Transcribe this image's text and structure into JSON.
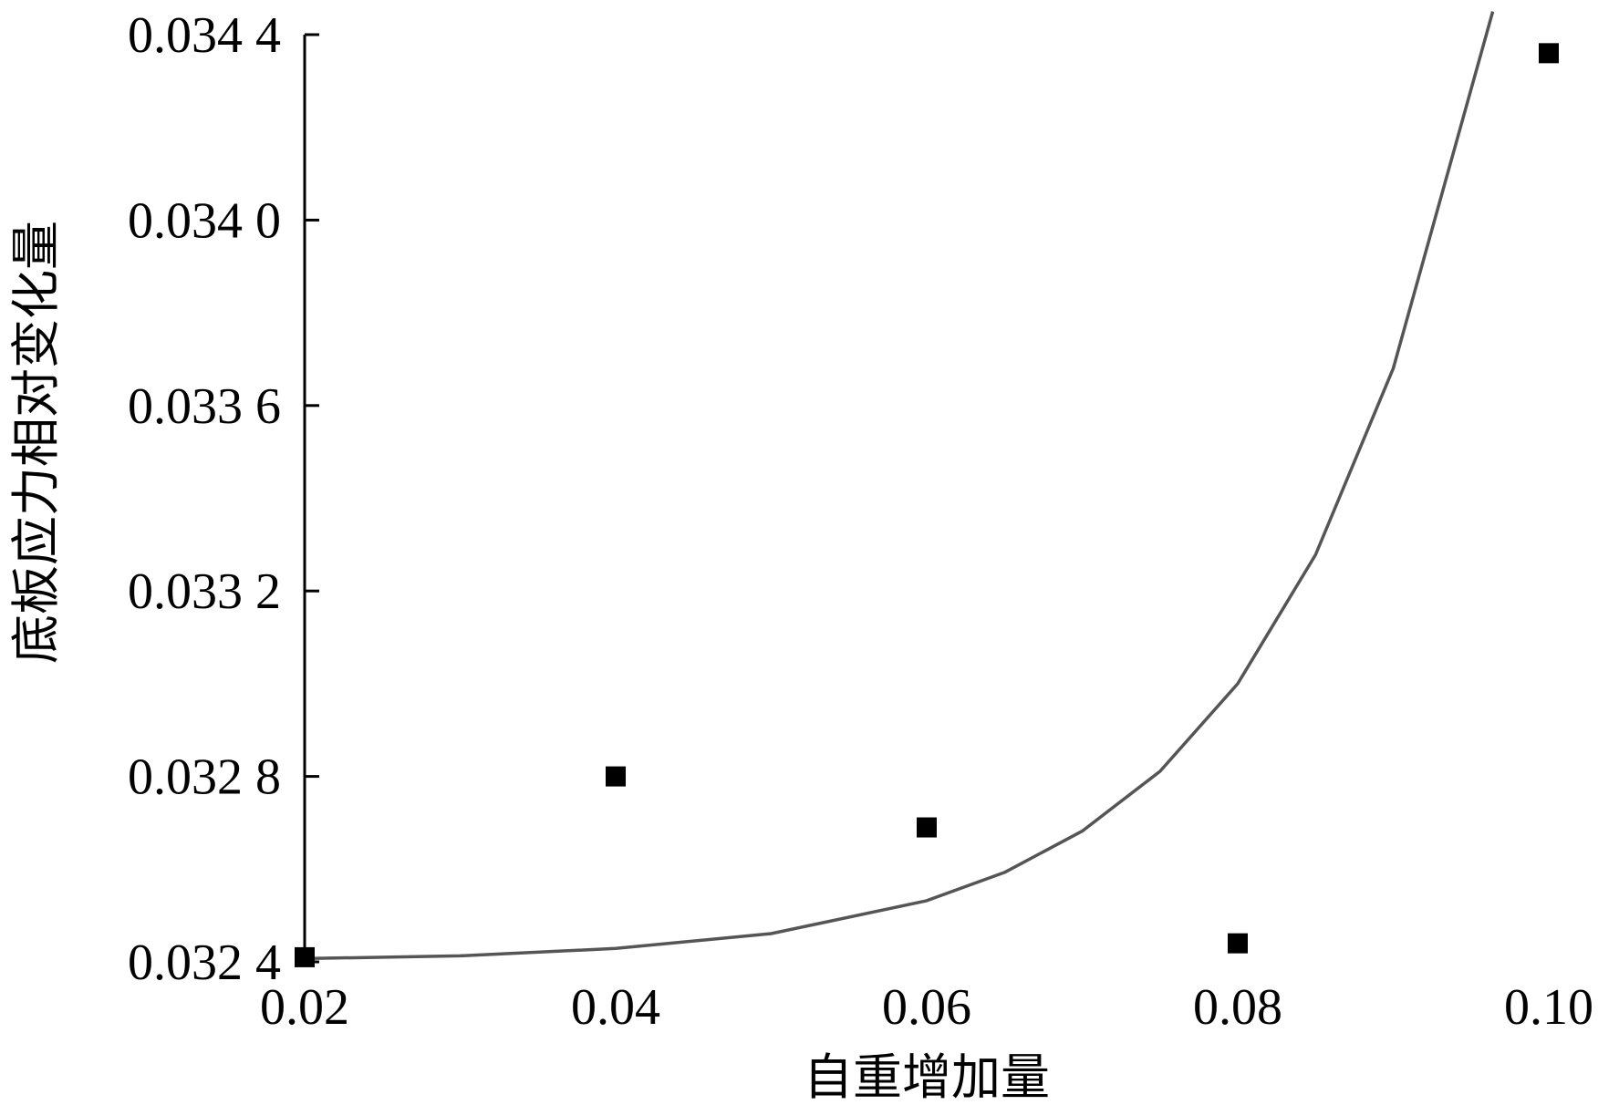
{
  "chart_data": {
    "type": "scatter",
    "title": "",
    "xlabel": "自重增加量",
    "ylabel": "底板应力相对变化量",
    "xlim": [
      0.02,
      0.1
    ],
    "ylim": [
      0.0324,
      0.0344
    ],
    "x_ticks": [
      0.02,
      0.04,
      0.06,
      0.08,
      0.1
    ],
    "x_tick_labels": [
      "0.02",
      "0.04",
      "0.06",
      "0.08",
      "0.10"
    ],
    "y_ticks": [
      0.0324,
      0.0328,
      0.0332,
      0.0336,
      0.034,
      0.0344
    ],
    "y_tick_labels": [
      "0.032 4",
      "0.032 8",
      "0.033 2",
      "0.033 6",
      "0.034 0",
      "0.034 4"
    ],
    "grid": false,
    "series": [
      {
        "type": "scatter",
        "marker": "square",
        "color": "#000000",
        "x": [
          0.02,
          0.04,
          0.06,
          0.08,
          0.1
        ],
        "y": [
          0.03241,
          0.0328,
          0.03269,
          0.03244,
          0.03436
        ]
      },
      {
        "type": "line",
        "fit": "exponential",
        "color": "#555555",
        "x": [
          0.02,
          0.03,
          0.04,
          0.05,
          0.06,
          0.065,
          0.07,
          0.075,
          0.08,
          0.085,
          0.09,
          0.0964
        ],
        "y": [
          0.032407,
          0.032413,
          0.032429,
          0.032461,
          0.032532,
          0.032593,
          0.032682,
          0.032811,
          0.033,
          0.033278,
          0.03368,
          0.03445
        ]
      }
    ]
  }
}
